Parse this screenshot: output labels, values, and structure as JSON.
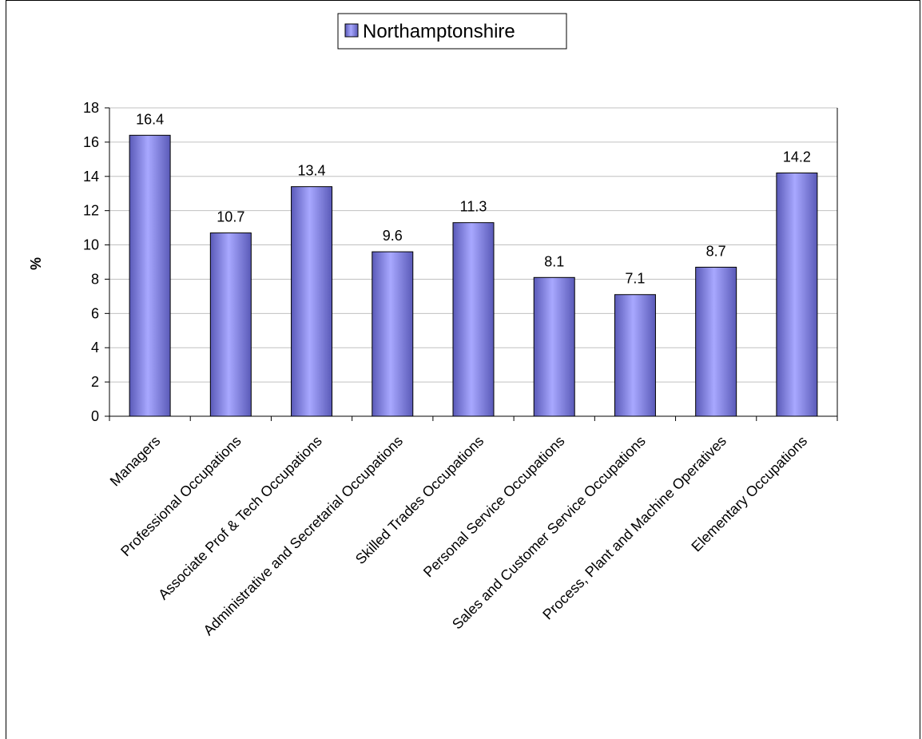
{
  "chart_data": {
    "type": "bar",
    "categories": [
      "Managers",
      "Professional Occupations",
      "Associate Prof & Tech Occupations",
      "Administrative and Secretarial Occupations",
      "Skilled Trades Occupations",
      "Personal Service Occupations",
      "Sales and Customer Service Occupations",
      "Process, Plant and Machine Operatives",
      "Elementary Occupations"
    ],
    "series": [
      {
        "name": "Northamptonshire",
        "values": [
          16.4,
          10.7,
          13.4,
          9.6,
          11.3,
          8.1,
          7.1,
          8.7,
          14.2
        ]
      }
    ],
    "data_labels": [
      "16.4",
      "10.7",
      "13.4",
      "9.6",
      "11.3",
      "8.1",
      "7.1",
      "8.7",
      "14.2"
    ],
    "title": "",
    "xlabel": "",
    "ylabel": "%",
    "ylim": [
      0,
      18
    ],
    "yticks": [
      0,
      2,
      4,
      6,
      8,
      10,
      12,
      14,
      16,
      18
    ],
    "grid": true,
    "legend_position": "top-center",
    "colors": {
      "bar_light": "#b4b4ff",
      "bar_mid": "#9999ff",
      "bar_dark": "#4b4ba8",
      "grid": "#c0c0c0"
    }
  }
}
